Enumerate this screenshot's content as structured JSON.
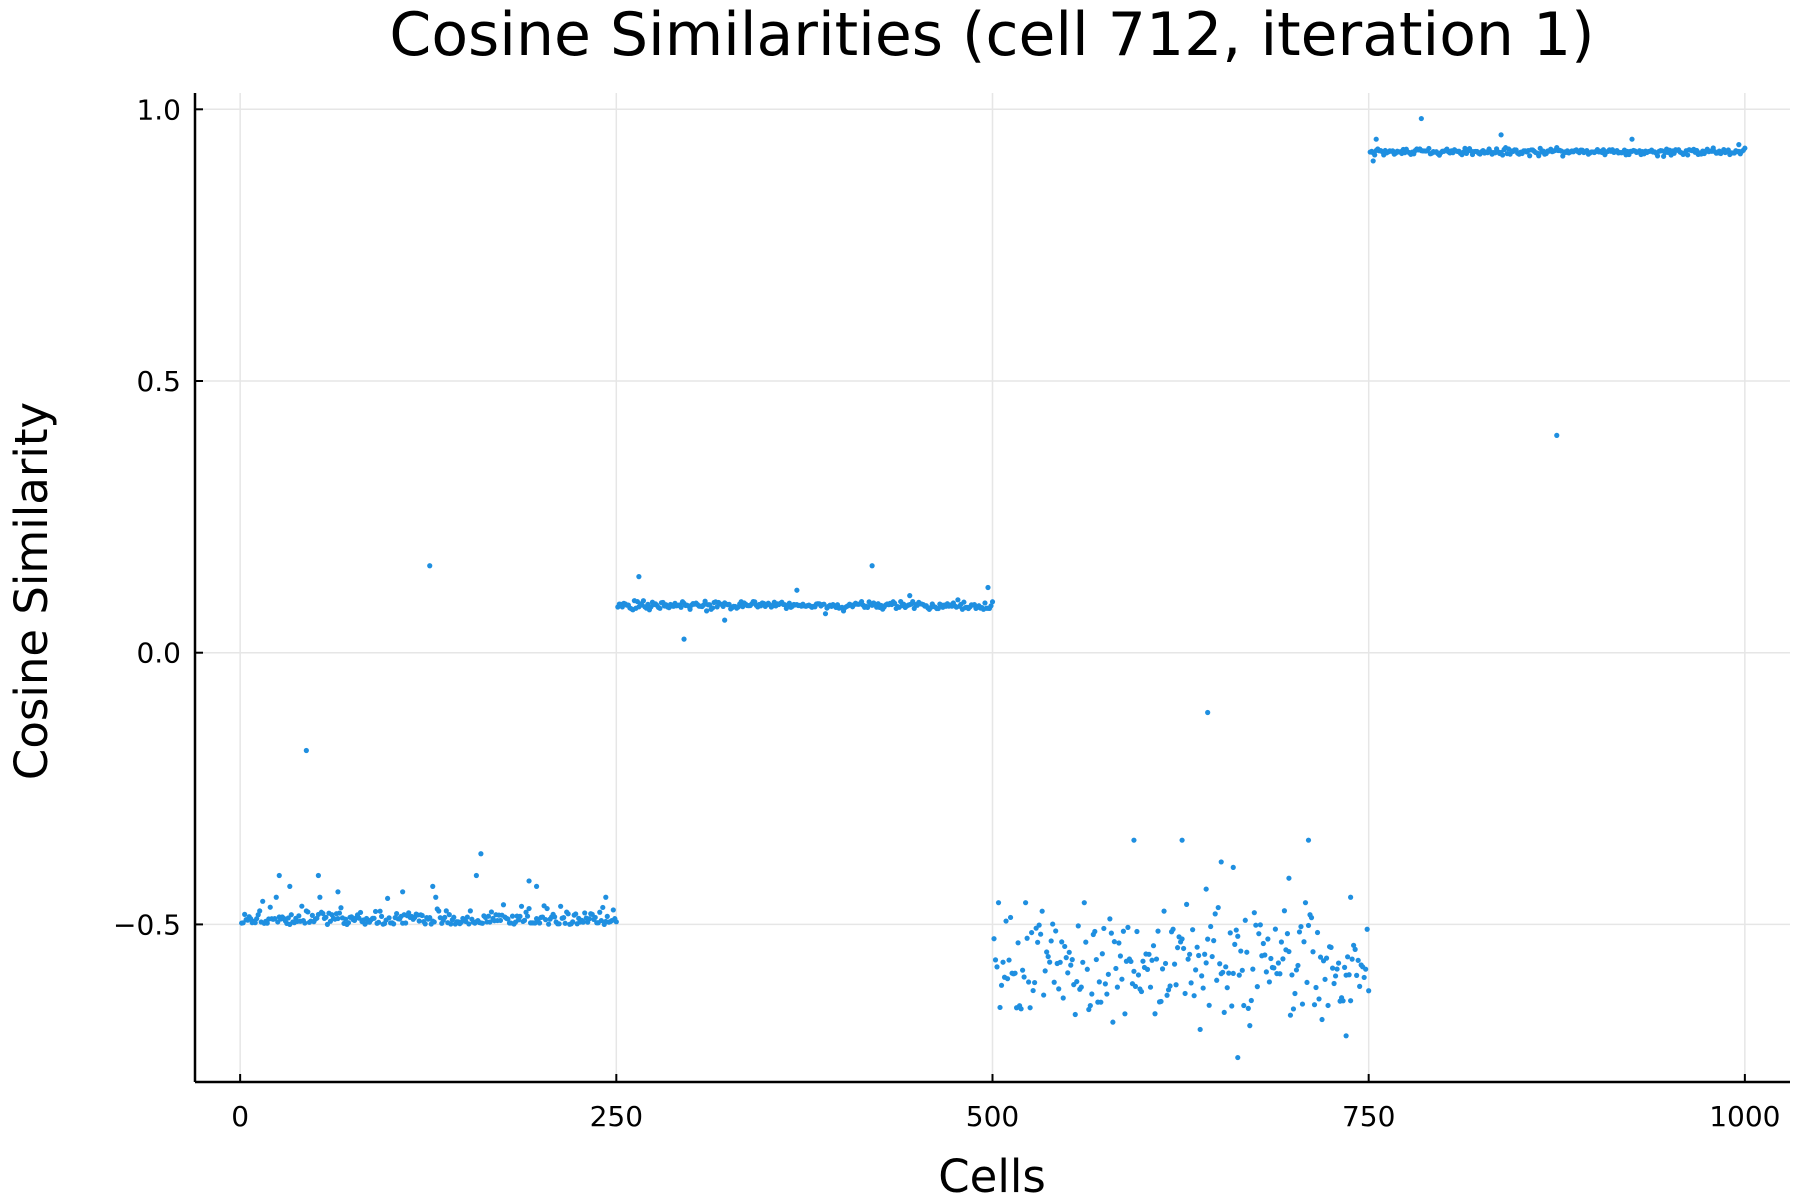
{
  "chart_data": {
    "type": "scatter",
    "title": "Cosine Similarities (cell 712, iteration 1)",
    "xlabel": "Cells",
    "ylabel": "Cosine Similarity",
    "xlim": [
      -30,
      1030
    ],
    "ylim": [
      -0.79,
      1.03
    ],
    "xticks": [
      0,
      250,
      500,
      750,
      1000
    ],
    "xtick_labels": [
      "0",
      "250",
      "500",
      "750",
      "1000"
    ],
    "yticks": [
      -0.5,
      0.0,
      0.5,
      1.0
    ],
    "ytick_labels": [
      "−0.5",
      "0.0",
      "0.5",
      "1.0"
    ],
    "grid": true,
    "legend": "none",
    "marker_color": "#1f8fe0",
    "groups": [
      {
        "x_start": 1,
        "x_end": 250,
        "center": -0.495,
        "spread": 0.012
      },
      {
        "x_start": 251,
        "x_end": 500,
        "center": 0.087,
        "spread": 0.004
      },
      {
        "x_start": 501,
        "x_end": 750,
        "center": -0.575,
        "spread": 0.055
      },
      {
        "x_start": 751,
        "x_end": 1000,
        "center": 0.922,
        "spread": 0.003
      }
    ],
    "outliers": [
      {
        "x": 44,
        "y": -0.18
      },
      {
        "x": 126,
        "y": 0.16
      },
      {
        "x": 26,
        "y": -0.41
      },
      {
        "x": 33,
        "y": -0.43
      },
      {
        "x": 52,
        "y": -0.41
      },
      {
        "x": 65,
        "y": -0.44
      },
      {
        "x": 108,
        "y": -0.44
      },
      {
        "x": 128,
        "y": -0.43
      },
      {
        "x": 157,
        "y": -0.41
      },
      {
        "x": 160,
        "y": -0.37
      },
      {
        "x": 192,
        "y": -0.42
      },
      {
        "x": 197,
        "y": -0.43
      },
      {
        "x": 243,
        "y": -0.45
      },
      {
        "x": 265,
        "y": 0.14
      },
      {
        "x": 295,
        "y": 0.025
      },
      {
        "x": 322,
        "y": 0.06
      },
      {
        "x": 370,
        "y": 0.115
      },
      {
        "x": 420,
        "y": 0.16
      },
      {
        "x": 445,
        "y": 0.105
      },
      {
        "x": 497,
        "y": 0.12
      },
      {
        "x": 594,
        "y": -0.345
      },
      {
        "x": 626,
        "y": -0.345
      },
      {
        "x": 643,
        "y": -0.11
      },
      {
        "x": 642,
        "y": -0.435
      },
      {
        "x": 652,
        "y": -0.385
      },
      {
        "x": 660,
        "y": -0.395
      },
      {
        "x": 663,
        "y": -0.745
      },
      {
        "x": 697,
        "y": -0.415
      },
      {
        "x": 710,
        "y": -0.345
      },
      {
        "x": 738,
        "y": -0.45
      },
      {
        "x": 735,
        "y": -0.705
      },
      {
        "x": 785,
        "y": 0.983
      },
      {
        "x": 838,
        "y": 0.953
      },
      {
        "x": 875,
        "y": 0.4
      },
      {
        "x": 925,
        "y": 0.945
      },
      {
        "x": 755,
        "y": 0.945
      },
      {
        "x": 996,
        "y": 0.935
      },
      {
        "x": 753,
        "y": 0.905
      }
    ]
  }
}
